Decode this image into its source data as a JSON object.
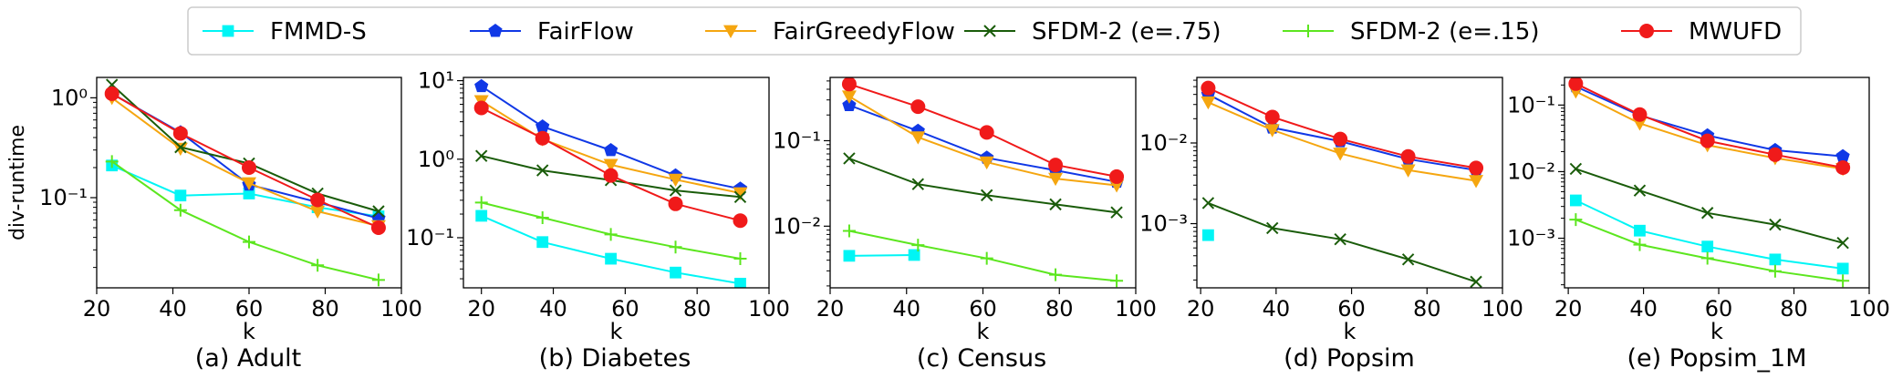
{
  "colors": {
    "fmmd_s": "#00f5f5",
    "fairflow": "#1038e6",
    "fairgreedyflow": "#f5a610",
    "sfdm2_075": "#1a5c0a",
    "sfdm2_015": "#5ce61f",
    "mwufd": "#f01a1a"
  },
  "legend": [
    {
      "key": "fmmd_s",
      "label": "FMMD-S",
      "marker": "square"
    },
    {
      "key": "fairflow",
      "label": "FairFlow",
      "marker": "pentagon"
    },
    {
      "key": "fairgreedyflow",
      "label": "FairGreedyFlow",
      "marker": "triangle-down"
    },
    {
      "key": "sfdm2_075",
      "label": "SFDM-2 (e=.75)",
      "marker": "x"
    },
    {
      "key": "sfdm2_015",
      "label": "SFDM-2 (e=.15)",
      "marker": "plus"
    },
    {
      "key": "mwufd",
      "label": "MWUFD",
      "marker": "circle"
    }
  ],
  "chart_data": [
    {
      "type": "line",
      "title": "(a) Adult",
      "xlabel": "k",
      "ylabel": "div-runtime",
      "yscale": "log",
      "xlim": [
        20,
        100
      ],
      "ylim": [
        0.0125,
        1.6
      ],
      "xticks": [
        "20",
        "40",
        "60",
        "80",
        "100"
      ],
      "yticks": [
        {
          "v": 0.1,
          "label": "10⁻¹"
        },
        {
          "v": 1,
          "label": "10⁰"
        }
      ],
      "series": [
        {
          "key": "fmmd_s",
          "name": "FMMD-S",
          "points": [
            [
              24,
              0.21
            ],
            [
              42,
              0.105
            ],
            [
              60,
              0.11
            ],
            [
              78,
              0.08
            ],
            [
              94,
              0.065
            ]
          ]
        },
        {
          "key": "fairflow",
          "name": "FairFlow",
          "points": [
            [
              24,
              1.1
            ],
            [
              42,
              0.45
            ],
            [
              60,
              0.135
            ],
            [
              78,
              0.09
            ],
            [
              94,
              0.062
            ]
          ]
        },
        {
          "key": "fairgreedyflow",
          "name": "FairGreedyFlow",
          "points": [
            [
              24,
              1.0
            ],
            [
              42,
              0.31
            ],
            [
              60,
              0.14
            ],
            [
              78,
              0.073
            ],
            [
              94,
              0.052
            ]
          ]
        },
        {
          "key": "sfdm2_075",
          "name": "SFDM-2 (e=.75)",
          "points": [
            [
              24,
              1.35
            ],
            [
              42,
              0.32
            ],
            [
              60,
              0.22
            ],
            [
              78,
              0.11
            ],
            [
              94,
              0.073
            ]
          ]
        },
        {
          "key": "sfdm2_015",
          "name": "SFDM-2 (e=.15)",
          "points": [
            [
              24,
              0.23
            ],
            [
              42,
              0.075
            ],
            [
              60,
              0.036
            ],
            [
              78,
              0.021
            ],
            [
              94,
              0.015
            ]
          ]
        },
        {
          "key": "mwufd",
          "name": "MWUFD",
          "points": [
            [
              24,
              1.1
            ],
            [
              42,
              0.44
            ],
            [
              60,
              0.2
            ],
            [
              78,
              0.095
            ],
            [
              94,
              0.05
            ]
          ]
        }
      ]
    },
    {
      "type": "line",
      "title": "(b) Diabetes",
      "xlabel": "k",
      "ylabel": "",
      "yscale": "log",
      "xlim": [
        15,
        100
      ],
      "ylim": [
        0.023,
        11
      ],
      "xticks": [
        "20",
        "40",
        "60",
        "80",
        "100"
      ],
      "yticks": [
        {
          "v": 0.1,
          "label": "10⁻¹"
        },
        {
          "v": 1,
          "label": "10⁰"
        },
        {
          "v": 10,
          "label": "10¹"
        }
      ],
      "series": [
        {
          "key": "fmmd_s",
          "name": "FMMD-S",
          "points": [
            [
              20,
              0.19
            ],
            [
              37,
              0.088
            ],
            [
              56,
              0.054
            ],
            [
              74,
              0.036
            ],
            [
              92,
              0.026
            ]
          ]
        },
        {
          "key": "fairflow",
          "name": "FairFlow",
          "points": [
            [
              20,
              8.5
            ],
            [
              37,
              2.6
            ],
            [
              56,
              1.3
            ],
            [
              74,
              0.62
            ],
            [
              92,
              0.42
            ]
          ]
        },
        {
          "key": "fairgreedyflow",
          "name": "FairGreedyFlow",
          "points": [
            [
              20,
              5.5
            ],
            [
              37,
              1.8
            ],
            [
              56,
              0.85
            ],
            [
              74,
              0.55
            ],
            [
              92,
              0.37
            ]
          ]
        },
        {
          "key": "sfdm2_075",
          "name": "SFDM-2 (e=.75)",
          "points": [
            [
              20,
              1.1
            ],
            [
              37,
              0.72
            ],
            [
              56,
              0.54
            ],
            [
              74,
              0.4
            ],
            [
              92,
              0.33
            ]
          ]
        },
        {
          "key": "sfdm2_015",
          "name": "SFDM-2 (e=.15)",
          "points": [
            [
              20,
              0.28
            ],
            [
              37,
              0.18
            ],
            [
              56,
              0.11
            ],
            [
              74,
              0.076
            ],
            [
              92,
              0.054
            ]
          ]
        },
        {
          "key": "mwufd",
          "name": "MWUFD",
          "points": [
            [
              20,
              4.5
            ],
            [
              37,
              1.85
            ],
            [
              56,
              0.62
            ],
            [
              74,
              0.27
            ],
            [
              92,
              0.165
            ]
          ]
        }
      ]
    },
    {
      "type": "line",
      "title": "(c) Census",
      "xlabel": "k",
      "ylabel": "",
      "yscale": "log",
      "xlim": [
        20,
        100
      ],
      "ylim": [
        0.0019,
        0.55
      ],
      "xticks": [
        "20",
        "40",
        "60",
        "80",
        "100"
      ],
      "yticks": [
        {
          "v": 0.01,
          "label": "10⁻²"
        },
        {
          "v": 0.1,
          "label": "10⁻¹"
        }
      ],
      "series": [
        {
          "key": "fmmd_s",
          "name": "FMMD-S",
          "points": [
            [
              25,
              0.0045
            ],
            [
              42,
              0.0046
            ]
          ]
        },
        {
          "key": "fairflow",
          "name": "FairFlow",
          "points": [
            [
              25,
              0.26
            ],
            [
              43,
              0.13
            ],
            [
              61,
              0.063
            ],
            [
              79,
              0.045
            ],
            [
              95,
              0.033
            ]
          ]
        },
        {
          "key": "fairgreedyflow",
          "name": "FairGreedyFlow",
          "points": [
            [
              25,
              0.33
            ],
            [
              43,
              0.11
            ],
            [
              61,
              0.056
            ],
            [
              79,
              0.036
            ],
            [
              95,
              0.03
            ]
          ]
        },
        {
          "key": "sfdm2_075",
          "name": "SFDM-2 (e=.75)",
          "points": [
            [
              25,
              0.062
            ],
            [
              43,
              0.031
            ],
            [
              61,
              0.023
            ],
            [
              79,
              0.018
            ],
            [
              95,
              0.0145
            ]
          ]
        },
        {
          "key": "sfdm2_015",
          "name": "SFDM-2 (e=.15)",
          "points": [
            [
              25,
              0.0088
            ],
            [
              43,
              0.006
            ],
            [
              61,
              0.0042
            ],
            [
              79,
              0.0027
            ],
            [
              95,
              0.0023
            ]
          ]
        },
        {
          "key": "mwufd",
          "name": "MWUFD",
          "points": [
            [
              25,
              0.46
            ],
            [
              43,
              0.25
            ],
            [
              61,
              0.125
            ],
            [
              79,
              0.052
            ],
            [
              95,
              0.038
            ]
          ]
        }
      ]
    },
    {
      "type": "line",
      "title": "(d) Popsim",
      "xlabel": "k",
      "ylabel": "",
      "yscale": "log",
      "xlim": [
        19,
        100
      ],
      "ylim": [
        0.00016,
        0.065
      ],
      "xticks": [
        "20",
        "40",
        "60",
        "80",
        "100"
      ],
      "yticks": [
        {
          "v": 0.001,
          "label": "10⁻³"
        },
        {
          "v": 0.01,
          "label": "10⁻²"
        }
      ],
      "series": [
        {
          "key": "fmmd_s",
          "name": "FMMD-S",
          "points": [
            [
              22,
              0.00072
            ]
          ]
        },
        {
          "key": "fairflow",
          "name": "FairFlow",
          "points": [
            [
              22,
              0.04
            ],
            [
              39,
              0.0155
            ],
            [
              57,
              0.0105
            ],
            [
              75,
              0.0063
            ],
            [
              93,
              0.0046
            ]
          ]
        },
        {
          "key": "fairgreedyflow",
          "name": "FairGreedyFlow",
          "points": [
            [
              22,
              0.032
            ],
            [
              39,
              0.0145
            ],
            [
              57,
              0.0074
            ],
            [
              75,
              0.0046
            ],
            [
              93,
              0.0034
            ]
          ]
        },
        {
          "key": "sfdm2_075",
          "name": "SFDM-2 (e=.75)",
          "points": [
            [
              22,
              0.0018
            ],
            [
              39,
              0.00088
            ],
            [
              57,
              0.00064
            ],
            [
              75,
              0.00036
            ],
            [
              93,
              0.00019
            ]
          ]
        },
        {
          "key": "mwufd",
          "name": "MWUFD",
          "points": [
            [
              22,
              0.048
            ],
            [
              39,
              0.021
            ],
            [
              57,
              0.0112
            ],
            [
              75,
              0.0068
            ],
            [
              93,
              0.0049
            ]
          ]
        }
      ]
    },
    {
      "type": "line",
      "title": "(e) Popsim_1M",
      "xlabel": "k",
      "ylabel": "",
      "yscale": "log",
      "xlim": [
        19,
        100
      ],
      "ylim": [
        0.00018,
        0.26
      ],
      "xticks": [
        "20",
        "40",
        "60",
        "80",
        "100"
      ],
      "yticks": [
        {
          "v": 0.001,
          "label": "10⁻³"
        },
        {
          "v": 0.01,
          "label": "10⁻²"
        },
        {
          "v": 0.1,
          "label": "10⁻¹"
        }
      ],
      "series": [
        {
          "key": "fmmd_s",
          "name": "FMMD-S",
          "points": [
            [
              22,
              0.0037
            ],
            [
              39,
              0.0013
            ],
            [
              57,
              0.00075
            ],
            [
              75,
              0.00048
            ],
            [
              93,
              0.00035
            ]
          ]
        },
        {
          "key": "fairflow",
          "name": "FairFlow",
          "points": [
            [
              22,
              0.19
            ],
            [
              39,
              0.07
            ],
            [
              57,
              0.035
            ],
            [
              75,
              0.021
            ],
            [
              93,
              0.017
            ]
          ]
        },
        {
          "key": "fairgreedyflow",
          "name": "FairGreedyFlow",
          "points": [
            [
              22,
              0.16
            ],
            [
              39,
              0.053
            ],
            [
              57,
              0.025
            ],
            [
              75,
              0.016
            ],
            [
              93,
              0.011
            ]
          ]
        },
        {
          "key": "sfdm2_075",
          "name": "SFDM-2 (e=.75)",
          "points": [
            [
              22,
              0.011
            ],
            [
              39,
              0.0052
            ],
            [
              57,
              0.0024
            ],
            [
              75,
              0.0016
            ],
            [
              93,
              0.00085
            ]
          ]
        },
        {
          "key": "sfdm2_015",
          "name": "SFDM-2 (e=.15)",
          "points": [
            [
              22,
              0.0019
            ],
            [
              39,
              0.0008
            ],
            [
              57,
              0.0005
            ],
            [
              75,
              0.00032
            ],
            [
              93,
              0.00023
            ]
          ]
        },
        {
          "key": "mwufd",
          "name": "MWUFD",
          "points": [
            [
              22,
              0.21
            ],
            [
              39,
              0.072
            ],
            [
              57,
              0.029
            ],
            [
              75,
              0.018
            ],
            [
              93,
              0.0115
            ]
          ]
        }
      ]
    }
  ]
}
